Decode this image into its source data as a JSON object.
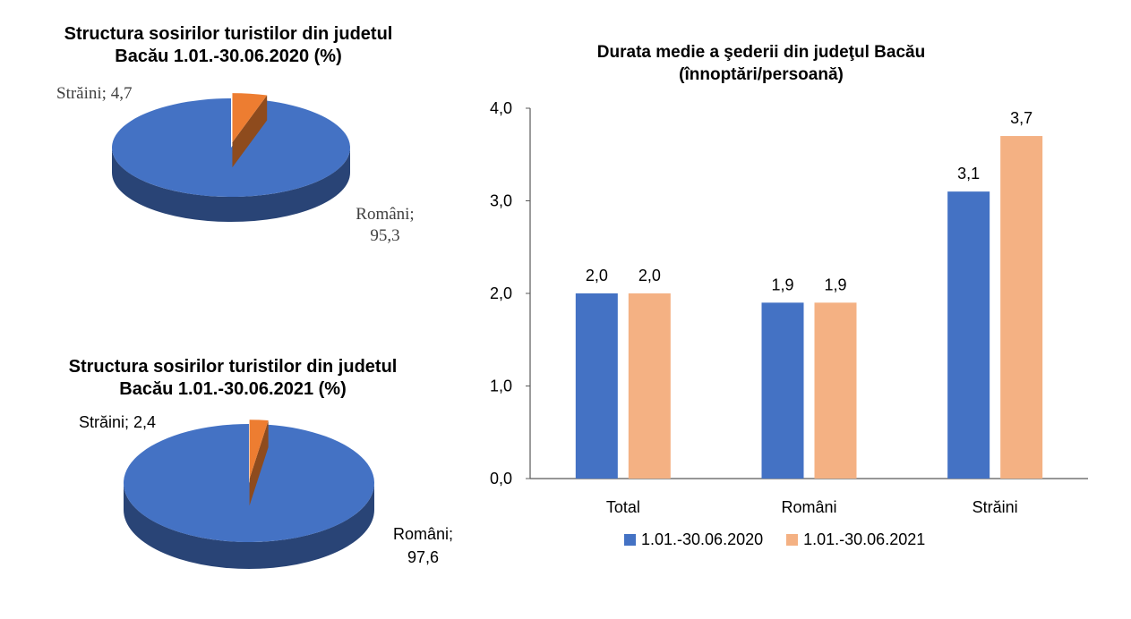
{
  "chart_data": [
    {
      "type": "pie",
      "title_line1": "Structura sosirilor turistilor din judetul",
      "title_line2": "Bacău  1.01.-30.06.2020 (%)",
      "slices": [
        {
          "label": "Români;",
          "value": 95.3,
          "value_text": "95,3",
          "color": "#4472C4"
        },
        {
          "label": "Străini; 4,7",
          "value": 4.7,
          "value_text": "4,7",
          "color": "#ED7D31"
        }
      ]
    },
    {
      "type": "pie",
      "title_line1": "Structura sosirilor turistilor din judetul",
      "title_line2": "Bacău 1.01.-30.06.2021 (%)",
      "slices": [
        {
          "label": "Români;",
          "value": 97.6,
          "value_text": "97,6",
          "color": "#4472C4"
        },
        {
          "label": "Străini; 2,4",
          "value": 2.4,
          "value_text": "2,4",
          "color": "#ED7D31"
        }
      ]
    },
    {
      "type": "bar",
      "title_line1": "Durata medie a şederii din judeţul Bacău",
      "title_line2": "(înnoptări/persoană)",
      "categories": [
        "Total",
        "Români",
        "Străini"
      ],
      "series": [
        {
          "name": "1.01.-30.06.2020",
          "values": [
            2.0,
            1.9,
            3.1
          ],
          "labels": [
            "2,0",
            "1,9",
            "3,1"
          ],
          "color": "#4472C4"
        },
        {
          "name": "1.01.-30.06.2021",
          "values": [
            2.0,
            1.9,
            3.7
          ],
          "labels": [
            "2,0",
            "1,9",
            "3,7"
          ],
          "color": "#F4B183"
        }
      ],
      "ylim": [
        0,
        4
      ],
      "yticks": [
        "0,0",
        "1,0",
        "2,0",
        "3,0",
        "4,0"
      ],
      "legend_position": "bottom"
    }
  ]
}
